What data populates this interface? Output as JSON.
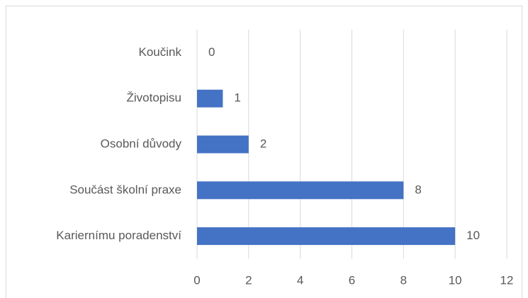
{
  "chart_data": {
    "type": "bar",
    "orientation": "horizontal",
    "categories": [
      "Koučink",
      "Životopisu",
      "Osobní důvody",
      "Součást školní praxe",
      "Kariernímu poradenství"
    ],
    "values": [
      0,
      1,
      2,
      8,
      10
    ],
    "color": "#4472c4",
    "xlim": [
      0,
      12
    ],
    "xticks": [
      0,
      2,
      4,
      6,
      8,
      10,
      12
    ],
    "grid": true,
    "data_labels": true
  }
}
